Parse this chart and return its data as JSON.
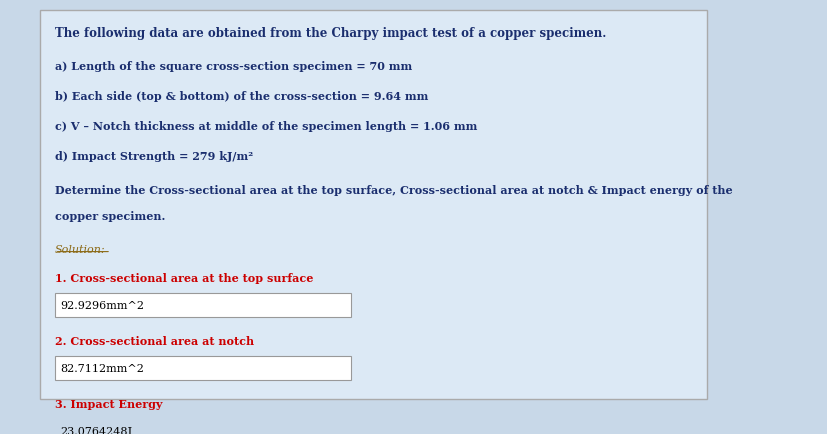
{
  "bg_color": "#dce9f5",
  "outer_bg": "#c8d8e8",
  "title_text": "The following data are obtained from the Charpy impact test of a copper specimen.",
  "items": [
    "a) Length of the square cross-section specimen = 70 mm",
    "b) Each side (top & bottom) of the cross-section = 9.64 mm",
    "c) V – Notch thickness at middle of the specimen length = 1.06 mm",
    "d) Impact Strength = 279 kJ/m²"
  ],
  "determine_line1": "Determine the Cross-sectional area at the top surface, Cross-sectional area at notch & Impact energy of the",
  "determine_line2": "copper specimen.",
  "solution_label": "Solution:",
  "results": [
    {
      "label": "1. Cross-sectional area at the top surface",
      "value": "92.9296mm^2"
    },
    {
      "label": "2. Cross-sectional area at notch",
      "value": "82.7112mm^2"
    },
    {
      "label": "3. Impact Energy",
      "value": "23.0764248J"
    }
  ],
  "dark_blue": "#1a2e6e",
  "red": "#cc0000",
  "solution_color": "#8B6914",
  "box_bg": "#ffffff",
  "box_border": "#999999"
}
